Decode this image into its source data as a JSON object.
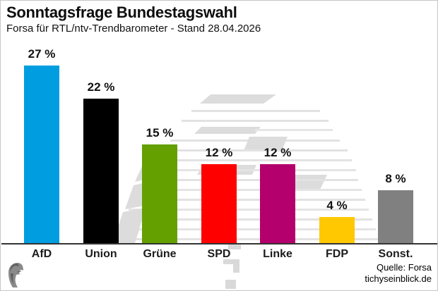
{
  "header": {
    "title": "Sonntagsfrage Bundestagswahl",
    "subtitle": "Forsa für RTL/ntv-Trendbarometer - Stand 28.04.2026"
  },
  "chart_data": {
    "type": "bar",
    "title": "Sonntagsfrage Bundestagswahl",
    "subtitle": "Forsa für RTL/ntv-Trendbarometer - Stand 28.04.2026",
    "categories": [
      "AfD",
      "Union",
      "Grüne",
      "SPD",
      "Linke",
      "FDP",
      "Sonst."
    ],
    "values": [
      27,
      22,
      15,
      12,
      12,
      4,
      8
    ],
    "value_labels": [
      "27 %",
      "22 %",
      "15 %",
      "12 %",
      "12 %",
      "4 %",
      "8 %"
    ],
    "bar_colors": [
      "#009EE0",
      "#000000",
      "#64A000",
      "#FF0000",
      "#B4006D",
      "#FFC800",
      "#808080"
    ],
    "unit": "%",
    "ylim": [
      0,
      29
    ],
    "grid": false,
    "legend": "none",
    "background_watermark": "reichstag-dome"
  },
  "footer": {
    "source_line1": "Quelle: Forsa",
    "source_line2": "tichyseinblick.de"
  },
  "icons": {
    "logo": "tichys-einblick-head-logo",
    "watermark": "reichstag-dome-watermark"
  }
}
